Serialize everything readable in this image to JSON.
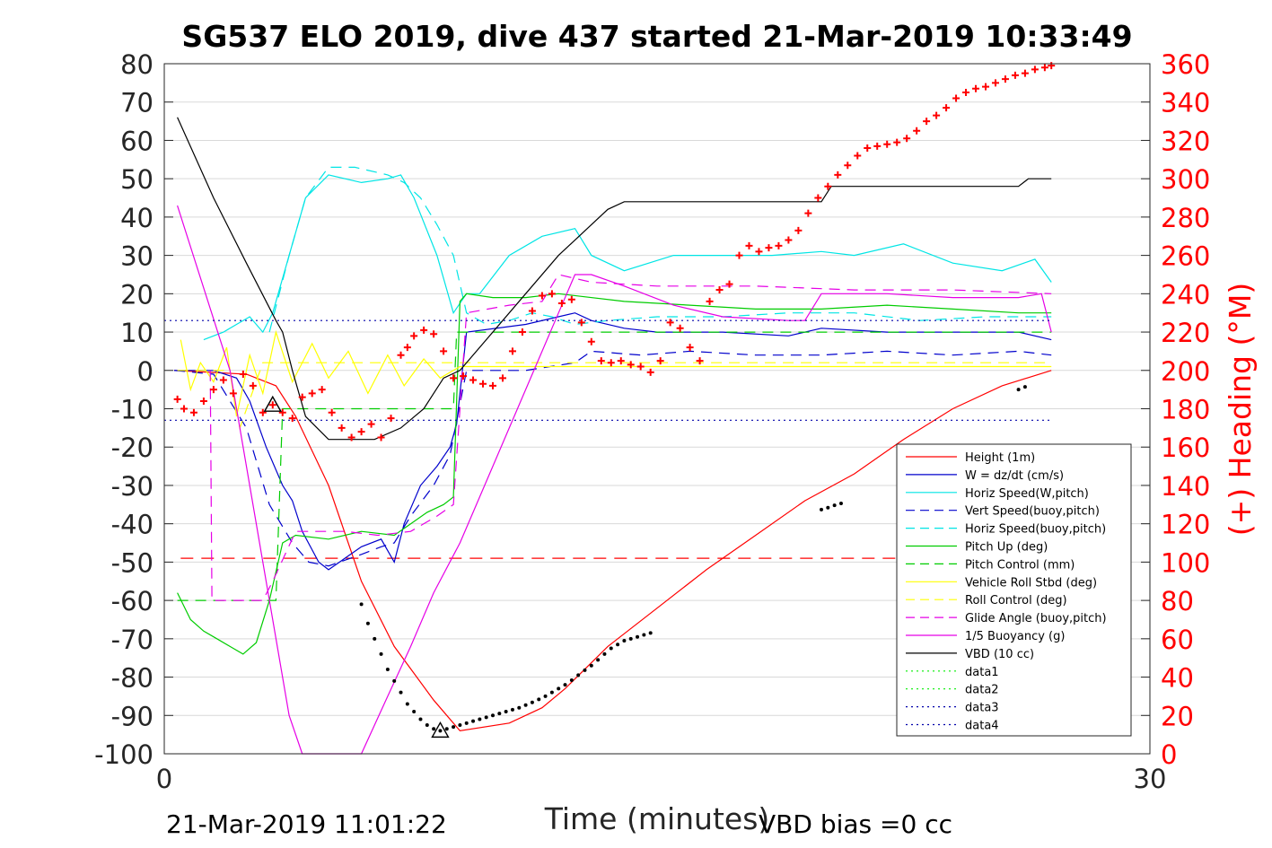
{
  "chart_data": {
    "type": "line",
    "title": "SG537 ELO 2019, dive 437 started 21-Mar-2019 10:33:49",
    "xlabel": "Time (minutes)",
    "ylabel": "",
    "y2label": "(+) Heading (°M)",
    "footer_left": "21-Mar-2019 11:01:22",
    "footer_right": "VBD bias =0 cc",
    "xlim": [
      0,
      30
    ],
    "ylim": [
      -100,
      80
    ],
    "y2lim": [
      0,
      360
    ],
    "xticks": [
      0,
      30
    ],
    "yticks": [
      80,
      70,
      60,
      50,
      40,
      30,
      20,
      10,
      0,
      -10,
      -20,
      -30,
      -40,
      -50,
      -60,
      -70,
      -80,
      -90,
      -100
    ],
    "y2ticks": [
      360,
      340,
      320,
      300,
      280,
      260,
      240,
      220,
      200,
      180,
      160,
      140,
      120,
      100,
      80,
      60,
      40,
      20,
      0
    ],
    "grid": "horizontal",
    "legend_position": "lower-right",
    "colors": {
      "heading": "#ff0000",
      "axis": "#000000",
      "grid": "#d9d9d9"
    },
    "series": [
      {
        "name": "Height (1m)",
        "color": "#ff0000",
        "dash": "",
        "x": [
          0.3,
          2.5,
          3.4,
          4.0,
          5.0,
          6.0,
          7.0,
          8.2,
          9.0,
          10.5,
          11.5,
          12.2,
          13.5,
          15.0,
          16.5,
          18.0,
          19.5,
          21.0,
          22.5,
          24.0,
          25.5,
          27.0
        ],
        "y": [
          0,
          -1,
          -4,
          -12,
          -30,
          -55,
          -72,
          -86,
          -94,
          -92,
          -88,
          -83,
          -72,
          -62,
          -52,
          -43,
          -34,
          -27,
          -18,
          -10,
          -4,
          0
        ]
      },
      {
        "name": "W = dz/dt (cm/s)",
        "color": "#0000cc",
        "dash": "",
        "x": [
          0.3,
          1.5,
          2.2,
          2.6,
          3.1,
          3.6,
          3.9,
          4.2,
          4.7,
          5.0,
          6.0,
          6.6,
          7.0,
          7.3,
          7.8,
          8.3,
          8.7,
          8.9,
          9.2,
          11.0,
          12.5,
          13.0,
          14.0,
          15.0,
          17.0,
          19.0,
          20.0,
          22.0,
          24.0,
          26.0,
          27.0
        ],
        "y": [
          0,
          0,
          -2,
          -8,
          -20,
          -30,
          -34,
          -42,
          -50,
          -52,
          -46,
          -44,
          -50,
          -40,
          -30,
          -25,
          -20,
          -14,
          10,
          12,
          15,
          13,
          11,
          10,
          10,
          9,
          11,
          10,
          10,
          10,
          8
        ]
      },
      {
        "name": "Horiz Speed(W,pitch)",
        "color": "#00e5e5",
        "dash": "",
        "x": [
          1.2,
          1.8,
          2.2,
          2.6,
          3.0,
          3.3,
          3.8,
          4.3,
          5.0,
          6.0,
          6.8,
          7.2,
          7.6,
          8.3,
          8.8,
          9.2,
          9.6,
          10.5,
          11.5,
          12.5,
          13.0,
          14.0,
          15.5,
          17.0,
          18.5,
          20.0,
          21.0,
          22.5,
          24.0,
          25.5,
          26.5,
          27.0
        ],
        "y": [
          8,
          10,
          12,
          14,
          10,
          15,
          30,
          45,
          51,
          49,
          50,
          51,
          45,
          30,
          15,
          20,
          20,
          30,
          35,
          37,
          30,
          26,
          30,
          30,
          30,
          31,
          30,
          33,
          28,
          26,
          29,
          23
        ]
      },
      {
        "name": "Vert Speed(buoy,pitch)",
        "color": "#0000cc",
        "dash": "12,8",
        "x": [
          0.3,
          1.5,
          2.5,
          3.2,
          3.9,
          4.4,
          5.0,
          6.0,
          6.6,
          7.0,
          7.5,
          8.2,
          8.7,
          9.2,
          11.0,
          12.5,
          13.0,
          14.5,
          16.0,
          18.0,
          20.0,
          22.0,
          24.0,
          26.0,
          27.0
        ],
        "y": [
          0,
          -1,
          -15,
          -35,
          -45,
          -50,
          -51,
          -48,
          -46,
          -45,
          -38,
          -30,
          -22,
          0,
          0,
          2,
          5,
          4,
          5,
          4,
          4,
          5,
          4,
          5,
          4
        ]
      },
      {
        "name": "Horiz Speed(buoy,pitch)",
        "color": "#00e5e5",
        "dash": "12,8",
        "x": [
          3.2,
          3.8,
          4.3,
          5.0,
          5.8,
          6.8,
          7.3,
          7.8,
          8.3,
          8.8,
          9.2,
          9.8,
          10.5,
          11.2,
          11.8,
          12.5,
          13.5,
          15.0,
          17.0,
          19.0,
          21.0,
          23.0,
          25.0,
          27.0
        ],
        "y": [
          10,
          30,
          45,
          53,
          53,
          51,
          49,
          45,
          38,
          30,
          15,
          12,
          13,
          15,
          14,
          12,
          13,
          14,
          14,
          15,
          15,
          13,
          14,
          14
        ]
      },
      {
        "name": "Pitch Up (deg)",
        "color": "#00cc00",
        "dash": "",
        "x": [
          0.4,
          0.8,
          1.2,
          1.6,
          2.0,
          2.4,
          2.8,
          3.2,
          3.6,
          4.0,
          5.0,
          6.0,
          7.0,
          7.5,
          8.0,
          8.5,
          8.8,
          9.0,
          9.2,
          10.0,
          11.0,
          12.0,
          14.0,
          16.0,
          18.0,
          20.0,
          22.0,
          24.0,
          26.0,
          27.0
        ],
        "y": [
          -58,
          -65,
          -68,
          -70,
          -72,
          -74,
          -71,
          -60,
          -45,
          -43,
          -44,
          -42,
          -43,
          -40,
          -37,
          -35,
          -33,
          18,
          20,
          19,
          19,
          20,
          18,
          17,
          16,
          16,
          17,
          16,
          15,
          15
        ]
      },
      {
        "name": "Pitch Control (mm)",
        "color": "#00cc00",
        "dash": "12,8",
        "x": [
          0.4,
          2.0,
          3.0,
          3.4,
          3.6,
          4.0,
          4.8,
          8.8,
          8.9,
          9.2,
          13.0,
          18.0,
          27.0
        ],
        "y": [
          -60,
          -60,
          -60,
          -60,
          -10,
          -10,
          -10,
          -10,
          10,
          10,
          10,
          10,
          10
        ]
      },
      {
        "name": "Vehicle Roll Stbd (deg)",
        "color": "#ffff00",
        "dash": "",
        "x": [
          0.5,
          0.8,
          1.1,
          1.5,
          1.9,
          2.2,
          2.6,
          3.0,
          3.4,
          3.9,
          4.5,
          5.0,
          5.6,
          6.2,
          6.8,
          7.3,
          7.9,
          8.4,
          9.0,
          10.0,
          12.0,
          15.0,
          18.0,
          21.0,
          24.0,
          27.0
        ],
        "y": [
          8,
          -5,
          2,
          -3,
          6,
          -12,
          4,
          -6,
          10,
          -3,
          7,
          -2,
          5,
          -6,
          4,
          -4,
          3,
          -2,
          1,
          1,
          1,
          1,
          1,
          1,
          1,
          1
        ]
      },
      {
        "name": "Roll Control (deg)",
        "color": "#ffff00",
        "dash": "12,8",
        "x": [
          0.4,
          2.0,
          2.3,
          3.0,
          9.0,
          27.0
        ],
        "y": [
          0,
          0,
          -15,
          2,
          2,
          2
        ]
      },
      {
        "name": "Glide Angle (buoy,pitch)",
        "color": "#e600e6",
        "dash": "12,8",
        "x": [
          1.4,
          1.45,
          3.0,
          3.3,
          4.0,
          5.5,
          6.5,
          7.5,
          8.3,
          8.8,
          9.2,
          10.5,
          11.5,
          12.0,
          13.0,
          15.0,
          18.0,
          21.0,
          24.0,
          27.0
        ],
        "y": [
          0,
          -60,
          -60,
          -55,
          -42,
          -42,
          -43,
          -42,
          -38,
          -35,
          15,
          17,
          18,
          25,
          23,
          22,
          22,
          21,
          21,
          20
        ]
      },
      {
        "name": "1/5 Buoyancy (g)",
        "color": "#e600e6",
        "dash": "",
        "x": [
          0.4,
          2.0,
          3.0,
          3.8,
          4.2,
          6.0,
          6.8,
          7.5,
          8.2,
          9.0,
          10.0,
          11.0,
          12.0,
          12.5,
          13.0,
          14.0,
          15.5,
          17.0,
          19.0,
          19.5,
          20.0,
          22.0,
          24.0,
          26.0,
          26.7,
          27.0
        ],
        "y": [
          43,
          0,
          -50,
          -90,
          -100,
          -100,
          -85,
          -72,
          -58,
          -45,
          -25,
          -5,
          15,
          25,
          25,
          22,
          17,
          14,
          13,
          13,
          20,
          20,
          19,
          19,
          20,
          10
        ]
      },
      {
        "name": "VBD (10 cc)",
        "color": "#000000",
        "dash": "",
        "x": [
          0.4,
          1.5,
          2.5,
          3.4,
          3.6,
          3.9,
          4.3,
          5.0,
          5.6,
          6.4,
          7.2,
          7.9,
          8.5,
          9.0,
          11.0,
          12.0,
          13.5,
          14.0,
          15.0,
          18.0,
          20.0,
          20.3,
          21.0,
          24.0,
          26.0,
          26.3,
          27.0
        ],
        "y": [
          66,
          45,
          28,
          13,
          10,
          0,
          -12,
          -18,
          -18,
          -18,
          -15,
          -10,
          -2,
          0,
          20,
          30,
          42,
          44,
          44,
          44,
          44,
          48,
          48,
          48,
          48,
          50,
          50
        ]
      },
      {
        "name": "data1",
        "color": "#00ee00",
        "dash": "2,4",
        "x": [],
        "y": []
      },
      {
        "name": "data2",
        "color": "#00ee00",
        "dash": "2,4",
        "x": [],
        "y": []
      },
      {
        "name": "data3",
        "color": "#0000aa",
        "dash": "2,4",
        "x": [
          0,
          27
        ],
        "y": [
          13,
          13
        ]
      },
      {
        "name": "data4",
        "color": "#0000aa",
        "dash": "2,4",
        "x": [
          0,
          27
        ],
        "y": [
          -13,
          -13
        ]
      }
    ],
    "extra_lines": [
      {
        "color": "#ff0000",
        "dash": "14,9",
        "x": [
          0.5,
          27
        ],
        "y": [
          -49,
          -49
        ]
      }
    ],
    "heading": {
      "color": "#ff0000",
      "marker": "+",
      "x": [
        0.4,
        0.6,
        0.9,
        1.2,
        1.5,
        1.8,
        2.1,
        2.4,
        2.7,
        3.0,
        3.3,
        3.6,
        3.9,
        4.2,
        4.5,
        4.8,
        5.1,
        5.4,
        5.7,
        6.0,
        6.3,
        6.6,
        6.9,
        7.2,
        7.4,
        7.6,
        7.9,
        8.2,
        8.5,
        8.8,
        9.1,
        9.4,
        9.7,
        10.0,
        10.3,
        10.6,
        10.9,
        11.2,
        11.5,
        11.8,
        12.1,
        12.4,
        12.7,
        13.0,
        13.3,
        13.6,
        13.9,
        14.2,
        14.5,
        14.8,
        15.1,
        15.4,
        15.7,
        16.0,
        16.3,
        16.6,
        16.9,
        17.2,
        17.5,
        17.8,
        18.1,
        18.4,
        18.7,
        19.0,
        19.3,
        19.6,
        19.9,
        20.2,
        20.5,
        20.8,
        21.1,
        21.4,
        21.7,
        22.0,
        22.3,
        22.6,
        22.9,
        23.2,
        23.5,
        23.8,
        24.1,
        24.4,
        24.7,
        25.0,
        25.3,
        25.6,
        25.9,
        26.2,
        26.5,
        26.8,
        27.0
      ],
      "y": [
        185,
        180,
        178,
        184,
        190,
        195,
        188,
        198,
        192,
        178,
        182,
        178,
        175,
        186,
        188,
        190,
        178,
        170,
        165,
        168,
        172,
        165,
        175,
        208,
        212,
        218,
        221,
        219,
        210,
        196,
        197,
        195,
        193,
        192,
        196,
        210,
        220,
        231,
        239,
        240,
        235,
        237,
        225,
        215,
        205,
        204,
        205,
        203,
        202,
        199,
        205,
        225,
        222,
        212,
        205,
        236,
        242,
        245,
        260,
        265,
        262,
        264,
        265,
        268,
        273,
        282,
        290,
        296,
        302,
        307,
        312,
        316,
        317,
        318,
        319,
        321,
        325,
        330,
        333,
        337,
        342,
        345,
        347,
        348,
        350,
        352,
        354,
        355,
        357,
        358,
        359
      ]
    },
    "markers": {
      "triangles": [
        {
          "x": 3.3,
          "y": -9
        },
        {
          "x": 8.4,
          "y": -94
        }
      ],
      "dots": [
        {
          "x": [
            6.0,
            6.2,
            6.4,
            6.6,
            6.8,
            7.0,
            7.2,
            7.4,
            7.6,
            7.8,
            8.0,
            8.2,
            8.4,
            8.6,
            8.8,
            9.0,
            9.2,
            9.4,
            9.6,
            9.8,
            10.0,
            10.2,
            10.4,
            10.6,
            10.8,
            11.0,
            11.2,
            11.4,
            11.6,
            11.8,
            12.0,
            12.2,
            12.4,
            12.6,
            12.8,
            13.0,
            13.2,
            13.4,
            13.6
          ],
          "y": [
            -61,
            -66,
            -70,
            -74,
            -78,
            -81,
            -84,
            -87,
            -89,
            -91,
            -92.5,
            -93.5,
            -94,
            -93.5,
            -93,
            -92.5,
            -92,
            -91.5,
            -91,
            -90.5,
            -90,
            -89.5,
            -89,
            -88.5,
            -88,
            -87.3,
            -86.6,
            -85.8,
            -85,
            -84,
            -83,
            -82,
            -80.8,
            -79.5,
            -78.2,
            -77,
            -75.5,
            -74,
            -72.5
          ]
        },
        {
          "x": [
            13.8,
            14.0,
            14.2,
            14.4,
            14.6,
            14.8
          ],
          "y": [
            -71.5,
            -70.5,
            -70,
            -69.5,
            -69,
            -68.5
          ]
        },
        {
          "x": [
            20.0,
            20.2,
            20.4,
            20.6
          ],
          "y": [
            -36.3,
            -35.8,
            -35.2,
            -34.7
          ]
        },
        {
          "x": [
            26.0,
            26.2
          ],
          "y": [
            -5,
            -4.3
          ]
        }
      ]
    }
  }
}
